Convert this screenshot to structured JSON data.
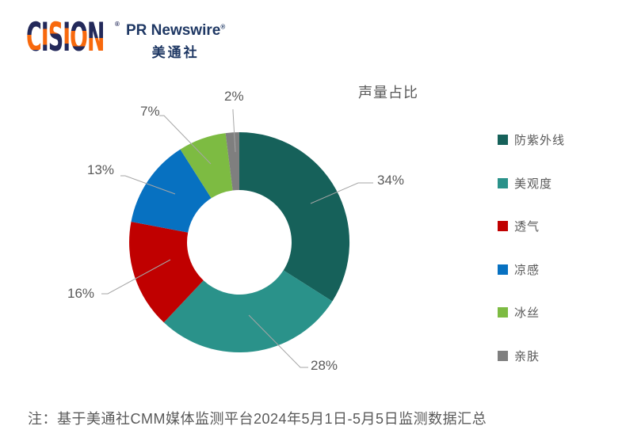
{
  "logo": {
    "cision": "CISION",
    "cision_trademark": "®",
    "pr_newswire": "PR Newswire",
    "registered_mark": "®",
    "chinese_name": "美通社",
    "navy": "#23295A",
    "orange": "#F8690D",
    "prn_navy": "#1F3864"
  },
  "chart_data": {
    "type": "pie",
    "subtype": "donut",
    "title": "声量占比",
    "legend_position": "right",
    "direction": "clockwise",
    "start_angle_deg": 0,
    "categories": [
      "防紫外线",
      "美观度",
      "透气",
      "凉感",
      "冰丝",
      "亲肤"
    ],
    "values": [
      34,
      28,
      16,
      13,
      7,
      2
    ],
    "labels": [
      "34%",
      "28%",
      "16%",
      "13%",
      "7%",
      "2%"
    ],
    "colors": [
      "#16615A",
      "#2A928A",
      "#C00000",
      "#0771C1",
      "#7DBB42",
      "#7F7F7F"
    ]
  },
  "style": {
    "text_color": "#595959",
    "leader_line_color": "#A6A6A6",
    "background": "#FFFFFF"
  },
  "note": "注：基于美通社CMM媒体监测平台2024年5月1日-5月5日监测数据汇总"
}
